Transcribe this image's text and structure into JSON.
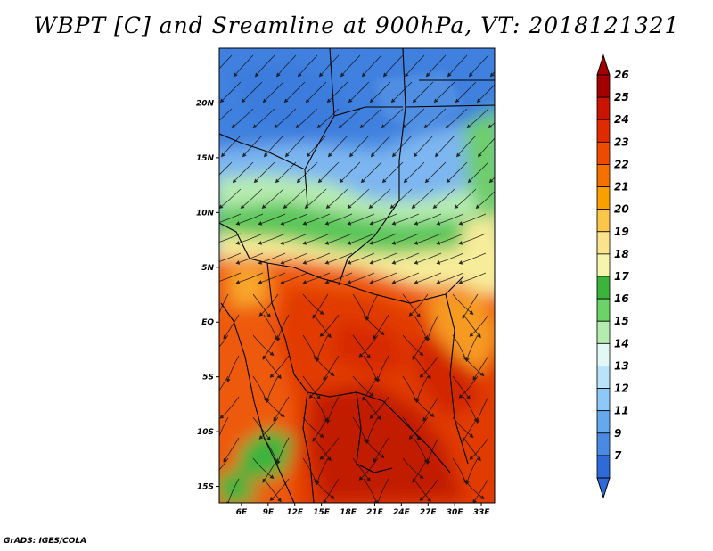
{
  "title": "WBPT [C] and Sreamline at 900hPa, VT: 2018121321",
  "footer": "GrADS: IGES/COLA",
  "map": {
    "lon_range": [
      3.5,
      34.5
    ],
    "lat_range": [
      -16.5,
      25
    ],
    "lon_ticks": [
      "6E",
      "9E",
      "12E",
      "15E",
      "18E",
      "21E",
      "24E",
      "27E",
      "30E",
      "33E"
    ],
    "lon_values": [
      6,
      9,
      12,
      15,
      18,
      21,
      24,
      27,
      30,
      33
    ],
    "lat_ticks": [
      "20N",
      "15N",
      "10N",
      "5N",
      "EQ",
      "5S",
      "10S",
      "15S"
    ],
    "lat_values": [
      20,
      15,
      10,
      5,
      0,
      -5,
      -10,
      -15
    ]
  },
  "colorbar": {
    "labels": [
      "26",
      "25",
      "24",
      "23",
      "22",
      "21",
      "20",
      "19",
      "18",
      "17",
      "16",
      "15",
      "14",
      "13",
      "12",
      "11",
      "9",
      "7"
    ],
    "colors": [
      "#a50000",
      "#c81400",
      "#e02a00",
      "#ee4a00",
      "#f57000",
      "#f9a000",
      "#fbc64a",
      "#fbe38c",
      "#f6f5b0",
      "#3cb43c",
      "#6cd26a",
      "#b4ecb0",
      "#e1f8f6",
      "#b8e3fa",
      "#8ec8f6",
      "#66a8ee",
      "#4b8ae4",
      "#2e6ad8"
    ]
  }
}
